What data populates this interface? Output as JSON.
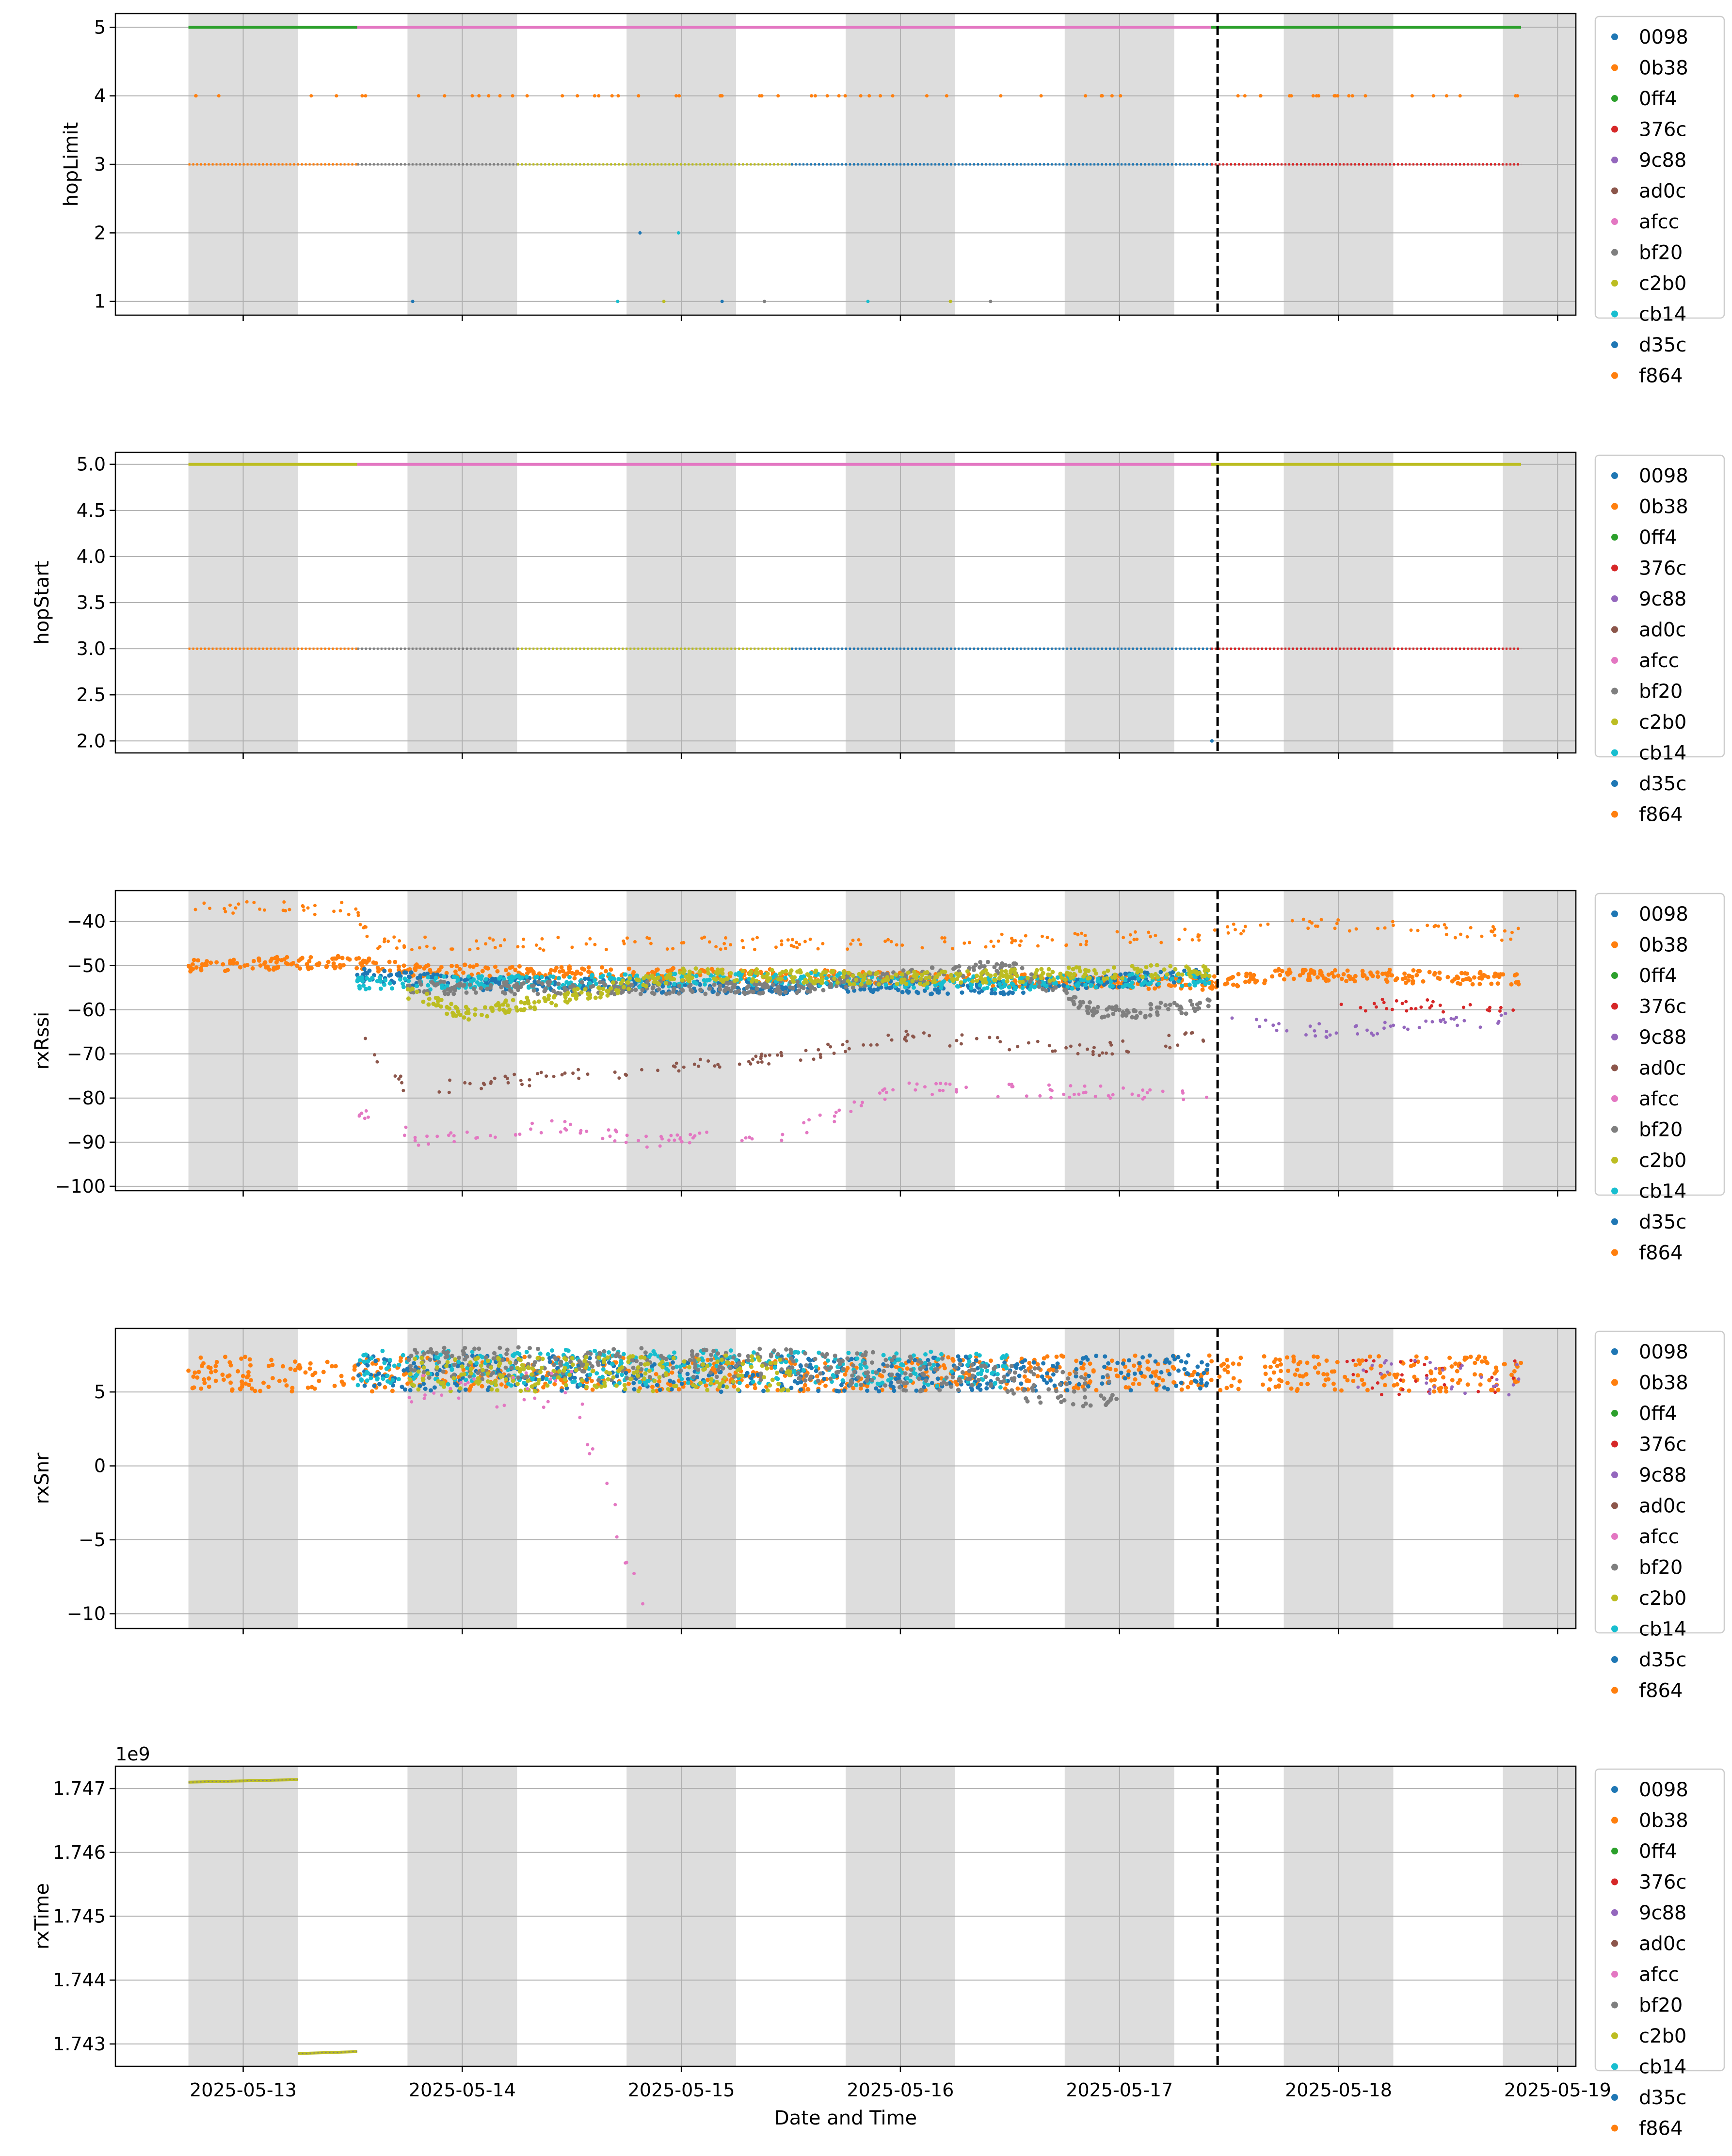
{
  "colors": {
    "0098": "#1f77b4",
    "0b38": "#ff7f0e",
    "0ff4": "#2ca02c",
    "376c": "#d62728",
    "9c88": "#9467bd",
    "ad0c": "#8c564b",
    "afcc": "#e377c2",
    "bf20": "#7f7f7f",
    "c2b0": "#bcbd22",
    "cb14": "#17becf",
    "d35c": "#1f77b4",
    "f864": "#ff7f0e",
    "night_band": "#dddddd",
    "grid": "#b0b0b0",
    "divider": "#000000"
  },
  "chart_data": [
    {
      "type": "scatter",
      "title": "",
      "xlabel": "",
      "ylabel": "hopLimit",
      "ylim": [
        0.8,
        5.2
      ],
      "yticks": [
        "1",
        "2",
        "3",
        "4",
        "5"
      ],
      "xticklabels": [
        "",
        "",
        "",
        "",
        "",
        "",
        ""
      ],
      "legend": [
        "0098",
        "0b38",
        "0ff4",
        "376c",
        "9c88",
        "ad0c",
        "afcc",
        "bf20",
        "c2b0",
        "cb14",
        "d35c",
        "f864"
      ],
      "legend_placement": "outside-right",
      "grid": true,
      "levels": [
        {
          "y": 5,
          "series": [
            "0ff4",
            "afcc",
            "0ff4"
          ],
          "note_ranges": [
            [
              "2025-05-12 18:00",
              "2025-05-13 12:30"
            ],
            [
              "2025-05-13 12:30",
              "2025-05-17 10:00"
            ],
            [
              "2025-05-17 10:00",
              "2025-05-18 20:00"
            ]
          ]
        },
        {
          "y": 4,
          "series": [
            "0b38"
          ],
          "sparse": true
        },
        {
          "y": 3,
          "series": [
            "0b38",
            "bf20",
            "c2b0",
            "0098",
            "376c"
          ],
          "dense": true
        },
        {
          "y": 2,
          "series": [
            "0098",
            "cb14",
            "bf20"
          ],
          "sparse": true
        },
        {
          "y": 1,
          "series": [
            "bf20",
            "0098",
            "c2b0",
            "cb14"
          ],
          "sparse": true
        }
      ]
    },
    {
      "type": "scatter",
      "title": "",
      "xlabel": "",
      "ylabel": "hopStart",
      "ylim": [
        1.87,
        5.13
      ],
      "yticks": [
        "2.0",
        "2.5",
        "3.0",
        "3.5",
        "4.0",
        "4.5",
        "5.0"
      ],
      "xticklabels": [
        "",
        "",
        "",
        "",
        "",
        "",
        ""
      ],
      "legend": [
        "0098",
        "0b38",
        "0ff4",
        "376c",
        "9c88",
        "ad0c",
        "afcc",
        "bf20",
        "c2b0",
        "cb14",
        "d35c",
        "f864"
      ],
      "legend_placement": "outside-right",
      "grid": true,
      "levels": [
        {
          "y": 5.0,
          "series": [
            "c2b0",
            "afcc",
            "c2b0"
          ]
        },
        {
          "y": 3.0,
          "series": [
            "0b38",
            "bf20",
            "c2b0",
            "376c"
          ]
        },
        {
          "y": 2.0,
          "series": [
            "0098"
          ],
          "sparse": true
        }
      ]
    },
    {
      "type": "scatter",
      "title": "",
      "xlabel": "",
      "ylabel": "rxRssi",
      "ylim": [
        -101,
        -33
      ],
      "yticks": [
        "−100",
        "−90",
        "−80",
        "−70",
        "−60",
        "−50",
        "−40"
      ],
      "xticklabels": [
        "",
        "",
        "",
        "",
        "",
        "",
        ""
      ],
      "legend": [
        "0098",
        "0b38",
        "0ff4",
        "376c",
        "9c88",
        "ad0c",
        "afcc",
        "bf20",
        "c2b0",
        "cb14",
        "d35c",
        "f864"
      ],
      "legend_placement": "outside-right",
      "grid": true,
      "series": [
        {
          "name": "0b38",
          "x": [
            "2025-05-12 18:00",
            "2025-05-13 12:00",
            "2025-05-13 14:00",
            "2025-05-16 00:00",
            "2025-05-17 10:00",
            "2025-05-17 16:00",
            "2025-05-18 20:00"
          ],
          "y": [
            -37,
            -37,
            -45,
            -45,
            -43,
            -40,
            -43
          ]
        },
        {
          "name": "f864",
          "x": [
            "2025-05-12 18:00",
            "2025-05-13 12:00",
            "2025-05-13 18:00",
            "2025-05-15 00:00",
            "2025-05-17 10:00",
            "2025-05-17 18:00",
            "2025-05-18 20:00"
          ],
          "y": [
            -50,
            -49,
            -51,
            -52,
            -54,
            -52,
            -53
          ]
        },
        {
          "name": "0098",
          "x": [
            "2025-05-13 12:30",
            "2025-05-14 00:00",
            "2025-05-15 12:00",
            "2025-05-16 12:00",
            "2025-05-17 10:00"
          ],
          "y": [
            -52,
            -54,
            -55,
            -55,
            -52
          ]
        },
        {
          "name": "cb14",
          "x": [
            "2025-05-13 12:30",
            "2025-05-13 18:00",
            "2025-05-15 12:00",
            "2025-05-16 12:00",
            "2025-05-17 10:00"
          ],
          "y": [
            -54,
            -54,
            -53,
            -54,
            -53
          ]
        },
        {
          "name": "bf20",
          "x": [
            "2025-05-13 18:00",
            "2025-05-14 12:00",
            "2025-05-15 12:00",
            "2025-05-16 12:00",
            "2025-05-16 22:00",
            "2025-05-17 10:00"
          ],
          "y": [
            -55,
            -55,
            -55,
            -50,
            -61,
            -59
          ]
        },
        {
          "name": "c2b0",
          "x": [
            "2025-05-13 18:00",
            "2025-05-14 00:00",
            "2025-05-14 12:00",
            "2025-05-15 00:00",
            "2025-05-16 00:00",
            "2025-05-17 10:00"
          ],
          "y": [
            -56,
            -61,
            -57,
            -52,
            -53,
            -51
          ]
        },
        {
          "name": "ad0c",
          "x": [
            "2025-05-13 12:30",
            "2025-05-13 18:00",
            "2025-05-15 12:00",
            "2025-05-16 00:00",
            "2025-05-16 22:00",
            "2025-05-17 10:00"
          ],
          "y": [
            -66,
            -78,
            -71,
            -66,
            -69,
            -66
          ]
        },
        {
          "name": "afcc",
          "x": [
            "2025-05-13 12:30",
            "2025-05-13 20:00",
            "2025-05-14 12:00",
            "2025-05-14 20:00",
            "2025-05-15 12:00",
            "2025-05-16 00:00",
            "2025-05-17 10:00"
          ],
          "y": [
            -83,
            -90,
            -86,
            -90,
            -88,
            -78,
            -79
          ]
        },
        {
          "name": "376c",
          "x": [
            "2025-05-18 00:00",
            "2025-05-18 20:00"
          ],
          "y": [
            -59,
            -59
          ]
        },
        {
          "name": "9c88",
          "x": [
            "2025-05-17 12:00",
            "2025-05-18 00:00",
            "2025-05-18 20:00"
          ],
          "y": [
            -63,
            -65,
            -62
          ]
        }
      ]
    },
    {
      "type": "scatter",
      "title": "",
      "xlabel": "",
      "ylabel": "rxSnr",
      "ylim": [
        -11,
        9.3
      ],
      "yticks": [
        "−10",
        "−5",
        "0",
        "5"
      ],
      "xticklabels": [
        "",
        "",
        "",
        "",
        "",
        "",
        ""
      ],
      "legend": [
        "0098",
        "0b38",
        "0ff4",
        "376c",
        "9c88",
        "ad0c",
        "afcc",
        "bf20",
        "c2b0",
        "cb14",
        "d35c",
        "f864"
      ],
      "legend_placement": "outside-right",
      "grid": true,
      "series": [
        {
          "name": "f864",
          "x": [
            "2025-05-12 18:00",
            "2025-05-13 12:30",
            "2025-05-17 10:00",
            "2025-05-18 20:00"
          ],
          "y": [
            6.2,
            6.2,
            6.3,
            6.2
          ]
        },
        {
          "name": "0098",
          "x": [
            "2025-05-13 12:30",
            "2025-05-15 12:00",
            "2025-05-17 10:00"
          ],
          "y": [
            6.3,
            6.2,
            6.3
          ]
        },
        {
          "name": "cb14",
          "x": [
            "2025-05-13 12:30",
            "2025-05-15 12:00",
            "2025-05-16 12:00"
          ],
          "y": [
            6.6,
            6.7,
            6.5
          ]
        },
        {
          "name": "bf20",
          "x": [
            "2025-05-13 18:00",
            "2025-05-15 12:00",
            "2025-05-17 00:00"
          ],
          "y": [
            6.8,
            7.0,
            5.0
          ]
        },
        {
          "name": "c2b0",
          "x": [
            "2025-05-13 18:00",
            "2025-05-15 12:00"
          ],
          "y": [
            6.2,
            6.3
          ]
        },
        {
          "name": "afcc",
          "x": [
            "2025-05-13 18:00",
            "2025-05-14 12:00",
            "2025-05-14 20:00"
          ],
          "y": [
            5.0,
            5.2,
            -9.6
          ]
        },
        {
          "name": "376c",
          "x": [
            "2025-05-18 00:00",
            "2025-05-18 20:00"
          ],
          "y": [
            6.0,
            6.0
          ]
        },
        {
          "name": "9c88",
          "x": [
            "2025-05-18 00:00",
            "2025-05-18 20:00"
          ],
          "y": [
            6.0,
            6.0
          ]
        }
      ]
    },
    {
      "type": "scatter",
      "title": "",
      "xlabel": "Date and Time",
      "ylabel": "rxTime",
      "y_scale_label": "1e9",
      "ylim": [
        1.74265,
        1.74735
      ],
      "yticks": [
        "1.743",
        "1.744",
        "1.745",
        "1.746",
        "1.747"
      ],
      "xticklabels": [
        "2025-05-13",
        "2025-05-14",
        "2025-05-15",
        "2025-05-16",
        "2025-05-17",
        "2025-05-18",
        "2025-05-19"
      ],
      "legend": [
        "0098",
        "0b38",
        "0ff4",
        "376c",
        "9c88",
        "ad0c",
        "afcc",
        "bf20",
        "c2b0",
        "cb14",
        "d35c",
        "f864"
      ],
      "legend_placement": "outside-right",
      "grid": true,
      "segments": [
        {
          "x": [
            "2025-05-12 18:00",
            "2025-05-13 06:00"
          ],
          "y": [
            1.7471,
            1.74714
          ]
        },
        {
          "x": [
            "2025-05-13 06:00",
            "2025-05-13 12:30"
          ],
          "y": [
            1.74285,
            1.74288
          ]
        }
      ]
    }
  ],
  "shared_x": {
    "range": [
      "2025-05-12 10:00",
      "2025-05-19 02:00"
    ],
    "night_bands": [
      [
        "2025-05-12 18:00",
        "2025-05-13 06:00"
      ],
      [
        "2025-05-13 18:00",
        "2025-05-14 06:00"
      ],
      [
        "2025-05-14 18:00",
        "2025-05-15 06:00"
      ],
      [
        "2025-05-15 18:00",
        "2025-05-16 06:00"
      ],
      [
        "2025-05-16 18:00",
        "2025-05-17 06:00"
      ],
      [
        "2025-05-17 18:00",
        "2025-05-18 06:00"
      ],
      [
        "2025-05-18 18:00",
        "2025-05-19 02:00"
      ]
    ],
    "vertical_marker": "2025-05-17 10:45"
  }
}
